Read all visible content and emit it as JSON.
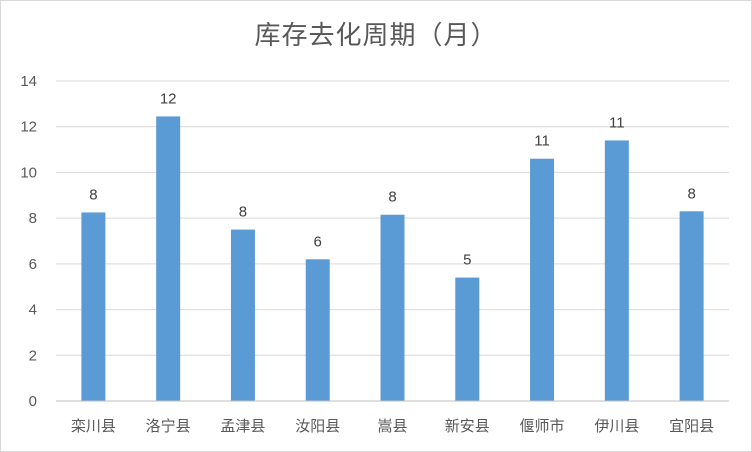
{
  "chart_data": {
    "type": "bar",
    "title": "库存去化周期（月）",
    "categories": [
      "栾川县",
      "洛宁县",
      "孟津县",
      "汝阳县",
      "嵩县",
      "新安县",
      "偃师市",
      "伊川县",
      "宜阳县"
    ],
    "values": [
      8.25,
      12.45,
      7.5,
      6.2,
      8.15,
      5.4,
      10.6,
      11.4,
      8.3
    ],
    "data_labels": [
      "8",
      "12",
      "8",
      "6",
      "8",
      "5",
      "11",
      "11",
      "8"
    ],
    "ylim": [
      0,
      14
    ],
    "yticks": [
      "0",
      "2",
      "4",
      "6",
      "8",
      "10",
      "12",
      "14"
    ],
    "grid": true,
    "legend": "none",
    "colors": {
      "bar": "#5b9bd5",
      "grid": "#d9d9d9",
      "text": "#595959"
    }
  }
}
